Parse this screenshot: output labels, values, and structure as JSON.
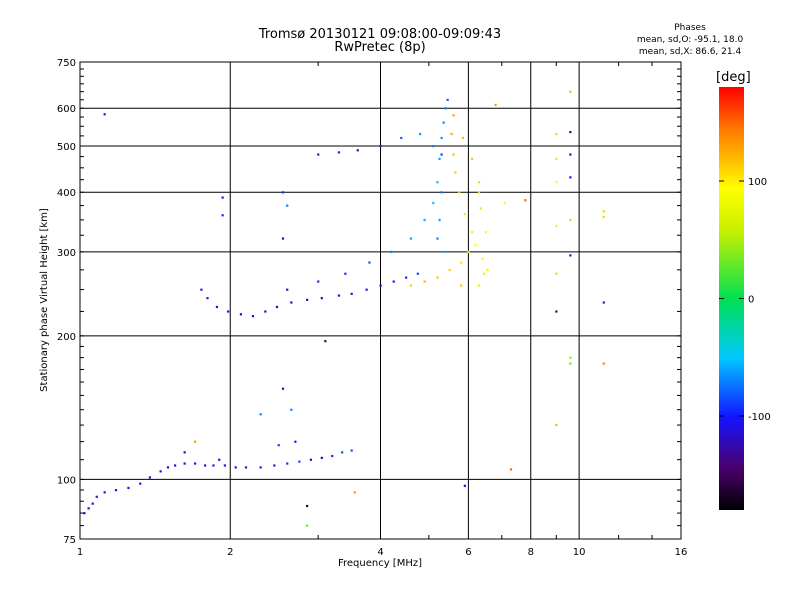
{
  "title": {
    "line1": "Tromsø 20130121 09:08:00-09:09:43",
    "line2": "RwPretec (8p)"
  },
  "phases": {
    "header": "Phases",
    "line_o": "mean, sd,O: -95.1, 18.0",
    "line_x": "mean, sd,X:  86.6, 21.4"
  },
  "colorbar": {
    "title": "[deg]",
    "ticks": [
      "100",
      "0",
      "-100"
    ],
    "tick_values": [
      100,
      0,
      -100
    ],
    "range": [
      -180,
      180
    ]
  },
  "chart_data": {
    "type": "scatter",
    "title": "Tromsø 20130121 09:08:00-09:09:43",
    "subtitle": "RwPretec (8p)",
    "xlabel": "Frequency [MHz]",
    "ylabel": "Stationary phase Virtual Height [km]",
    "x_scale": "log",
    "y_scale": "log",
    "xlim": [
      1,
      16
    ],
    "ylim": [
      75,
      750
    ],
    "x_ticks": [
      1,
      2,
      4,
      6,
      8,
      10,
      16
    ],
    "x_tick_labels": [
      "1",
      "2",
      "4",
      "6",
      "8",
      "10",
      "16"
    ],
    "y_ticks": [
      75,
      100,
      200,
      300,
      400,
      500,
      600,
      750
    ],
    "y_tick_labels": [
      "75",
      "100",
      "200",
      "300",
      "400",
      "500",
      "600",
      "750"
    ],
    "grid": true,
    "color_variable": "phase [deg]",
    "series": [
      {
        "points": [
          [
            1.02,
            85,
            -110
          ],
          [
            1.04,
            87,
            -115
          ],
          [
            1.06,
            89,
            -112
          ],
          [
            1.08,
            92,
            -105
          ],
          [
            1.12,
            94,
            -100
          ],
          [
            1.18,
            95,
            -108
          ],
          [
            1.25,
            96,
            -110
          ],
          [
            1.32,
            98,
            -105
          ],
          [
            1.38,
            101,
            -108
          ],
          [
            1.45,
            104,
            -112
          ],
          [
            1.5,
            106,
            -110
          ],
          [
            1.55,
            107,
            -106
          ],
          [
            1.62,
            108,
            -108
          ],
          [
            1.7,
            108,
            -110
          ],
          [
            1.78,
            107,
            -112
          ],
          [
            1.85,
            107,
            -108
          ],
          [
            1.95,
            107,
            -106
          ],
          [
            2.05,
            106,
            -110
          ],
          [
            2.15,
            106,
            -108
          ],
          [
            2.3,
            106,
            -105
          ],
          [
            2.45,
            107,
            -100
          ],
          [
            2.6,
            108,
            -95
          ],
          [
            2.75,
            109,
            -90
          ],
          [
            2.9,
            110,
            -110
          ],
          [
            3.05,
            111,
            -130
          ],
          [
            3.2,
            112,
            -95
          ],
          [
            3.35,
            114,
            -85
          ],
          [
            3.5,
            115,
            -85
          ],
          [
            1.62,
            114,
            -105
          ],
          [
            1.9,
            110,
            -102
          ],
          [
            2.5,
            118,
            -90
          ],
          [
            2.55,
            155,
            -115
          ],
          [
            2.3,
            137,
            -70
          ],
          [
            2.65,
            140,
            -70
          ],
          [
            1.12,
            583,
            -100
          ],
          [
            1.93,
            390,
            -105
          ],
          [
            1.93,
            358,
            -95
          ],
          [
            2.22,
            220,
            -120
          ],
          [
            2.35,
            225,
            -118
          ],
          [
            2.48,
            230,
            -122
          ],
          [
            2.65,
            235,
            -115
          ],
          [
            2.85,
            238,
            -120
          ],
          [
            3.05,
            240,
            -118
          ],
          [
            3.3,
            243,
            -112
          ],
          [
            3.5,
            245,
            -110
          ],
          [
            3.75,
            250,
            -106
          ],
          [
            4.0,
            255,
            -105
          ],
          [
            4.25,
            260,
            -100
          ],
          [
            4.5,
            265,
            -95
          ],
          [
            4.75,
            270,
            -90
          ],
          [
            1.75,
            250,
            -100
          ],
          [
            1.8,
            240,
            -105
          ],
          [
            1.88,
            230,
            -108
          ],
          [
            1.98,
            225,
            -110
          ],
          [
            2.1,
            222,
            -112
          ],
          [
            2.6,
            250,
            -100
          ],
          [
            3.0,
            260,
            -95
          ],
          [
            3.4,
            270,
            -95
          ],
          [
            3.8,
            285,
            -85
          ],
          [
            4.2,
            300,
            -70
          ],
          [
            4.6,
            320,
            -60
          ],
          [
            4.9,
            350,
            -55
          ],
          [
            5.1,
            380,
            -50
          ],
          [
            5.2,
            420,
            -55
          ],
          [
            5.25,
            470,
            -60
          ],
          [
            5.3,
            520,
            -65
          ],
          [
            5.35,
            560,
            -70
          ],
          [
            5.4,
            600,
            -75
          ],
          [
            5.45,
            625,
            -80
          ],
          [
            5.3,
            480,
            -90
          ],
          [
            5.3,
            400,
            -75
          ],
          [
            5.25,
            350,
            -60
          ],
          [
            5.2,
            320,
            -70
          ],
          [
            5.35,
            300,
            -55
          ],
          [
            5.1,
            500,
            -70
          ],
          [
            4.8,
            530,
            -60
          ],
          [
            4.4,
            520,
            -80
          ],
          [
            4.0,
            500,
            -95
          ],
          [
            3.6,
            490,
            -105
          ],
          [
            3.3,
            485,
            -100
          ],
          [
            3.0,
            480,
            -110
          ],
          [
            2.55,
            400,
            -95
          ],
          [
            2.6,
            375,
            -70
          ],
          [
            2.55,
            320,
            -120
          ],
          [
            4.6,
            255,
            110
          ],
          [
            4.9,
            260,
            120
          ],
          [
            5.2,
            265,
            115
          ],
          [
            5.5,
            275,
            110
          ],
          [
            5.8,
            285,
            105
          ],
          [
            6.0,
            300,
            95
          ],
          [
            6.2,
            310,
            90
          ],
          [
            6.4,
            290,
            95
          ],
          [
            6.45,
            270,
            100
          ],
          [
            6.1,
            330,
            100
          ],
          [
            5.9,
            360,
            105
          ],
          [
            5.75,
            400,
            110
          ],
          [
            5.65,
            440,
            115
          ],
          [
            5.6,
            480,
            120
          ],
          [
            5.55,
            530,
            125
          ],
          [
            5.6,
            580,
            130
          ],
          [
            5.85,
            520,
            120
          ],
          [
            6.1,
            470,
            115
          ],
          [
            6.3,
            420,
            110
          ],
          [
            6.35,
            370,
            105
          ],
          [
            5.8,
            255,
            115
          ],
          [
            6.3,
            255,
            100
          ],
          [
            6.5,
            330,
            90
          ],
          [
            6.3,
            400,
            110
          ],
          [
            6.55,
            275,
            100
          ],
          [
            6.8,
            610,
            130
          ],
          [
            7.1,
            380,
            90
          ],
          [
            7.3,
            105,
            150
          ],
          [
            7.8,
            385,
            150
          ],
          [
            9.0,
            530,
            60
          ],
          [
            9.0,
            470,
            70
          ],
          [
            9.0,
            420,
            90
          ],
          [
            9.0,
            340,
            80
          ],
          [
            9.0,
            270,
            110
          ],
          [
            9.0,
            225,
            -150
          ],
          [
            9.0,
            130,
            40
          ],
          [
            9.6,
            650,
            40
          ],
          [
            9.6,
            535,
            -130
          ],
          [
            9.6,
            480,
            -120
          ],
          [
            9.6,
            430,
            -105
          ],
          [
            9.6,
            350,
            50
          ],
          [
            9.6,
            295,
            -110
          ],
          [
            9.6,
            180,
            40
          ],
          [
            9.6,
            175,
            30
          ],
          [
            11.2,
            365,
            110
          ],
          [
            11.2,
            355,
            60
          ],
          [
            11.2,
            235,
            -110
          ],
          [
            11.2,
            175,
            140
          ],
          [
            5.9,
            97,
            -105
          ],
          [
            3.55,
            94,
            130
          ],
          [
            3.1,
            195,
            -150
          ],
          [
            2.85,
            88,
            -160
          ],
          [
            2.85,
            80,
            30
          ],
          [
            2.7,
            120,
            -110
          ],
          [
            1.7,
            120,
            130
          ]
        ]
      }
    ]
  }
}
